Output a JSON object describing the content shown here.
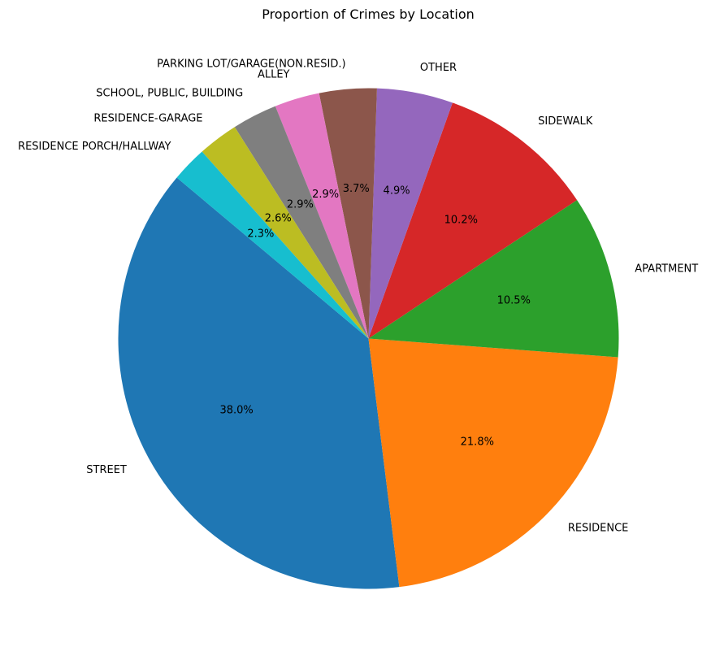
{
  "chart_data": {
    "type": "pie",
    "title": "Proportion of Crimes by Location",
    "start_angle_deg": 140,
    "direction": "counterclockwise",
    "slices": [
      {
        "label": "STREET",
        "value": 38.0,
        "pct_label": "38.0%",
        "color": "#1f77b4"
      },
      {
        "label": "RESIDENCE",
        "value": 21.8,
        "pct_label": "21.8%",
        "color": "#ff7f0e"
      },
      {
        "label": "APARTMENT",
        "value": 10.5,
        "pct_label": "10.5%",
        "color": "#2ca02c"
      },
      {
        "label": "SIDEWALK",
        "value": 10.2,
        "pct_label": "10.2%",
        "color": "#d62728"
      },
      {
        "label": "OTHER",
        "value": 4.9,
        "pct_label": "4.9%",
        "color": "#9467bd"
      },
      {
        "label": "PARKING LOT/GARAGE(NON.RESID.)",
        "value": 3.7,
        "pct_label": "3.7%",
        "color": "#8c564b"
      },
      {
        "label": "ALLEY",
        "value": 2.9,
        "pct_label": "2.9%",
        "color": "#e377c2"
      },
      {
        "label": "SCHOOL, PUBLIC, BUILDING",
        "value": 2.9,
        "pct_label": "2.9%",
        "color": "#7f7f7f"
      },
      {
        "label": "RESIDENCE-GARAGE",
        "value": 2.6,
        "pct_label": "2.6%",
        "color": "#bcbd22"
      },
      {
        "label": "RESIDENCE PORCH/HALLWAY",
        "value": 2.3,
        "pct_label": "2.3%",
        "color": "#17becf"
      }
    ]
  }
}
